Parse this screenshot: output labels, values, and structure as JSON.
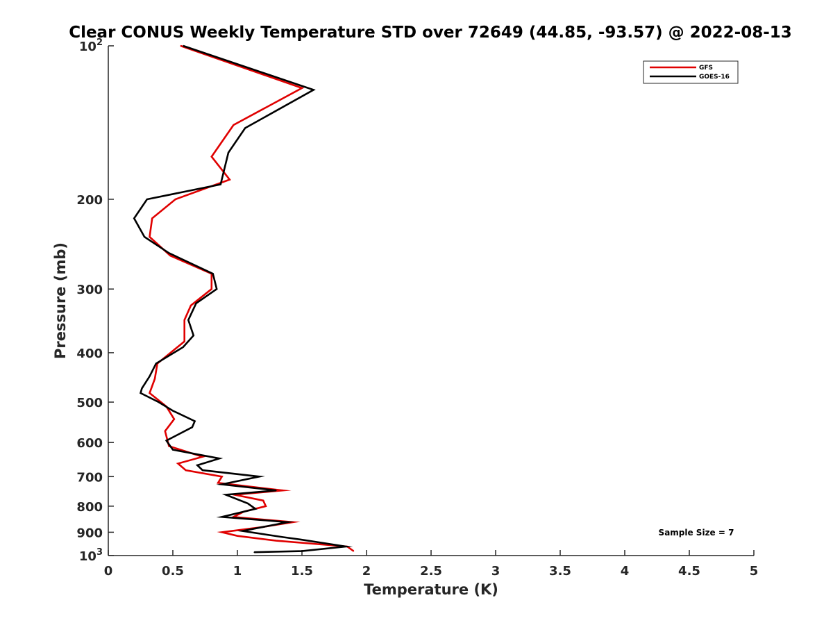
{
  "chart_data": {
    "type": "line",
    "title": "Clear CONUS Weekly Temperature STD over 72649 (44.85, -93.57) @ 2022-08-13",
    "xlabel": "Temperature (K)",
    "ylabel": "Pressure (mb)",
    "xlim": [
      0,
      5
    ],
    "ylim": [
      100,
      1000
    ],
    "y_scale": "log",
    "y_reversed": true,
    "grid": false,
    "legend_position": "top-right",
    "x_ticks": [
      0,
      0.5,
      1,
      1.5,
      2,
      2.5,
      3,
      3.5,
      4,
      4.5,
      5
    ],
    "x_tick_labels": [
      "0",
      "0.5",
      "1",
      "1.5",
      "2",
      "2.5",
      "3",
      "3.5",
      "4",
      "4.5",
      "5"
    ],
    "y_ticks": [
      100,
      200,
      300,
      400,
      500,
      600,
      700,
      800,
      900,
      1000
    ],
    "y_tick_labels": [
      "10^2",
      "200",
      "300",
      "400",
      "500",
      "600",
      "700",
      "800",
      "900",
      "10^3"
    ],
    "annotation": "Sample Size = 7",
    "series": [
      {
        "name": "GFS",
        "color": "#e00000",
        "points": [
          [
            0.56,
            100
          ],
          [
            1.5,
            121
          ],
          [
            0.97,
            143
          ],
          [
            0.8,
            165
          ],
          [
            0.94,
            183
          ],
          [
            0.52,
            200
          ],
          [
            0.34,
            218
          ],
          [
            0.32,
            237
          ],
          [
            0.48,
            258
          ],
          [
            0.8,
            280
          ],
          [
            0.8,
            300
          ],
          [
            0.64,
            323
          ],
          [
            0.59,
            345
          ],
          [
            0.59,
            380
          ],
          [
            0.38,
            420
          ],
          [
            0.36,
            450
          ],
          [
            0.32,
            480
          ],
          [
            0.45,
            510
          ],
          [
            0.51,
            540
          ],
          [
            0.44,
            570
          ],
          [
            0.47,
            610
          ],
          [
            0.73,
            640
          ],
          [
            0.54,
            660
          ],
          [
            0.6,
            680
          ],
          [
            0.88,
            700
          ],
          [
            0.85,
            720
          ],
          [
            1.35,
            745
          ],
          [
            0.98,
            760
          ],
          [
            1.2,
            780
          ],
          [
            1.22,
            800
          ],
          [
            1.05,
            820
          ],
          [
            0.97,
            840
          ],
          [
            1.43,
            860
          ],
          [
            1.18,
            880
          ],
          [
            0.88,
            900
          ],
          [
            1.0,
            915
          ],
          [
            1.3,
            935
          ],
          [
            1.85,
            960
          ],
          [
            1.9,
            980
          ]
        ]
      },
      {
        "name": "GOES-16",
        "color": "#000000",
        "points": [
          [
            0.58,
            100
          ],
          [
            1.59,
            122
          ],
          [
            1.06,
            145
          ],
          [
            0.93,
            162
          ],
          [
            0.87,
            187
          ],
          [
            0.3,
            200
          ],
          [
            0.2,
            218
          ],
          [
            0.28,
            237
          ],
          [
            0.47,
            255
          ],
          [
            0.81,
            280
          ],
          [
            0.84,
            300
          ],
          [
            0.68,
            320
          ],
          [
            0.62,
            345
          ],
          [
            0.66,
            370
          ],
          [
            0.58,
            390
          ],
          [
            0.37,
            420
          ],
          [
            0.32,
            445
          ],
          [
            0.26,
            470
          ],
          [
            0.25,
            480
          ],
          [
            0.39,
            500
          ],
          [
            0.5,
            520
          ],
          [
            0.67,
            545
          ],
          [
            0.65,
            560
          ],
          [
            0.45,
            595
          ],
          [
            0.5,
            620
          ],
          [
            0.86,
            645
          ],
          [
            0.69,
            665
          ],
          [
            0.73,
            680
          ],
          [
            1.17,
            700
          ],
          [
            0.88,
            725
          ],
          [
            1.3,
            745
          ],
          [
            0.91,
            760
          ],
          [
            1.08,
            790
          ],
          [
            1.14,
            810
          ],
          [
            0.88,
            840
          ],
          [
            1.39,
            860
          ],
          [
            1.04,
            895
          ],
          [
            1.35,
            920
          ],
          [
            1.49,
            930
          ],
          [
            1.84,
            960
          ],
          [
            1.5,
            980
          ],
          [
            1.13,
            985
          ]
        ]
      }
    ]
  }
}
